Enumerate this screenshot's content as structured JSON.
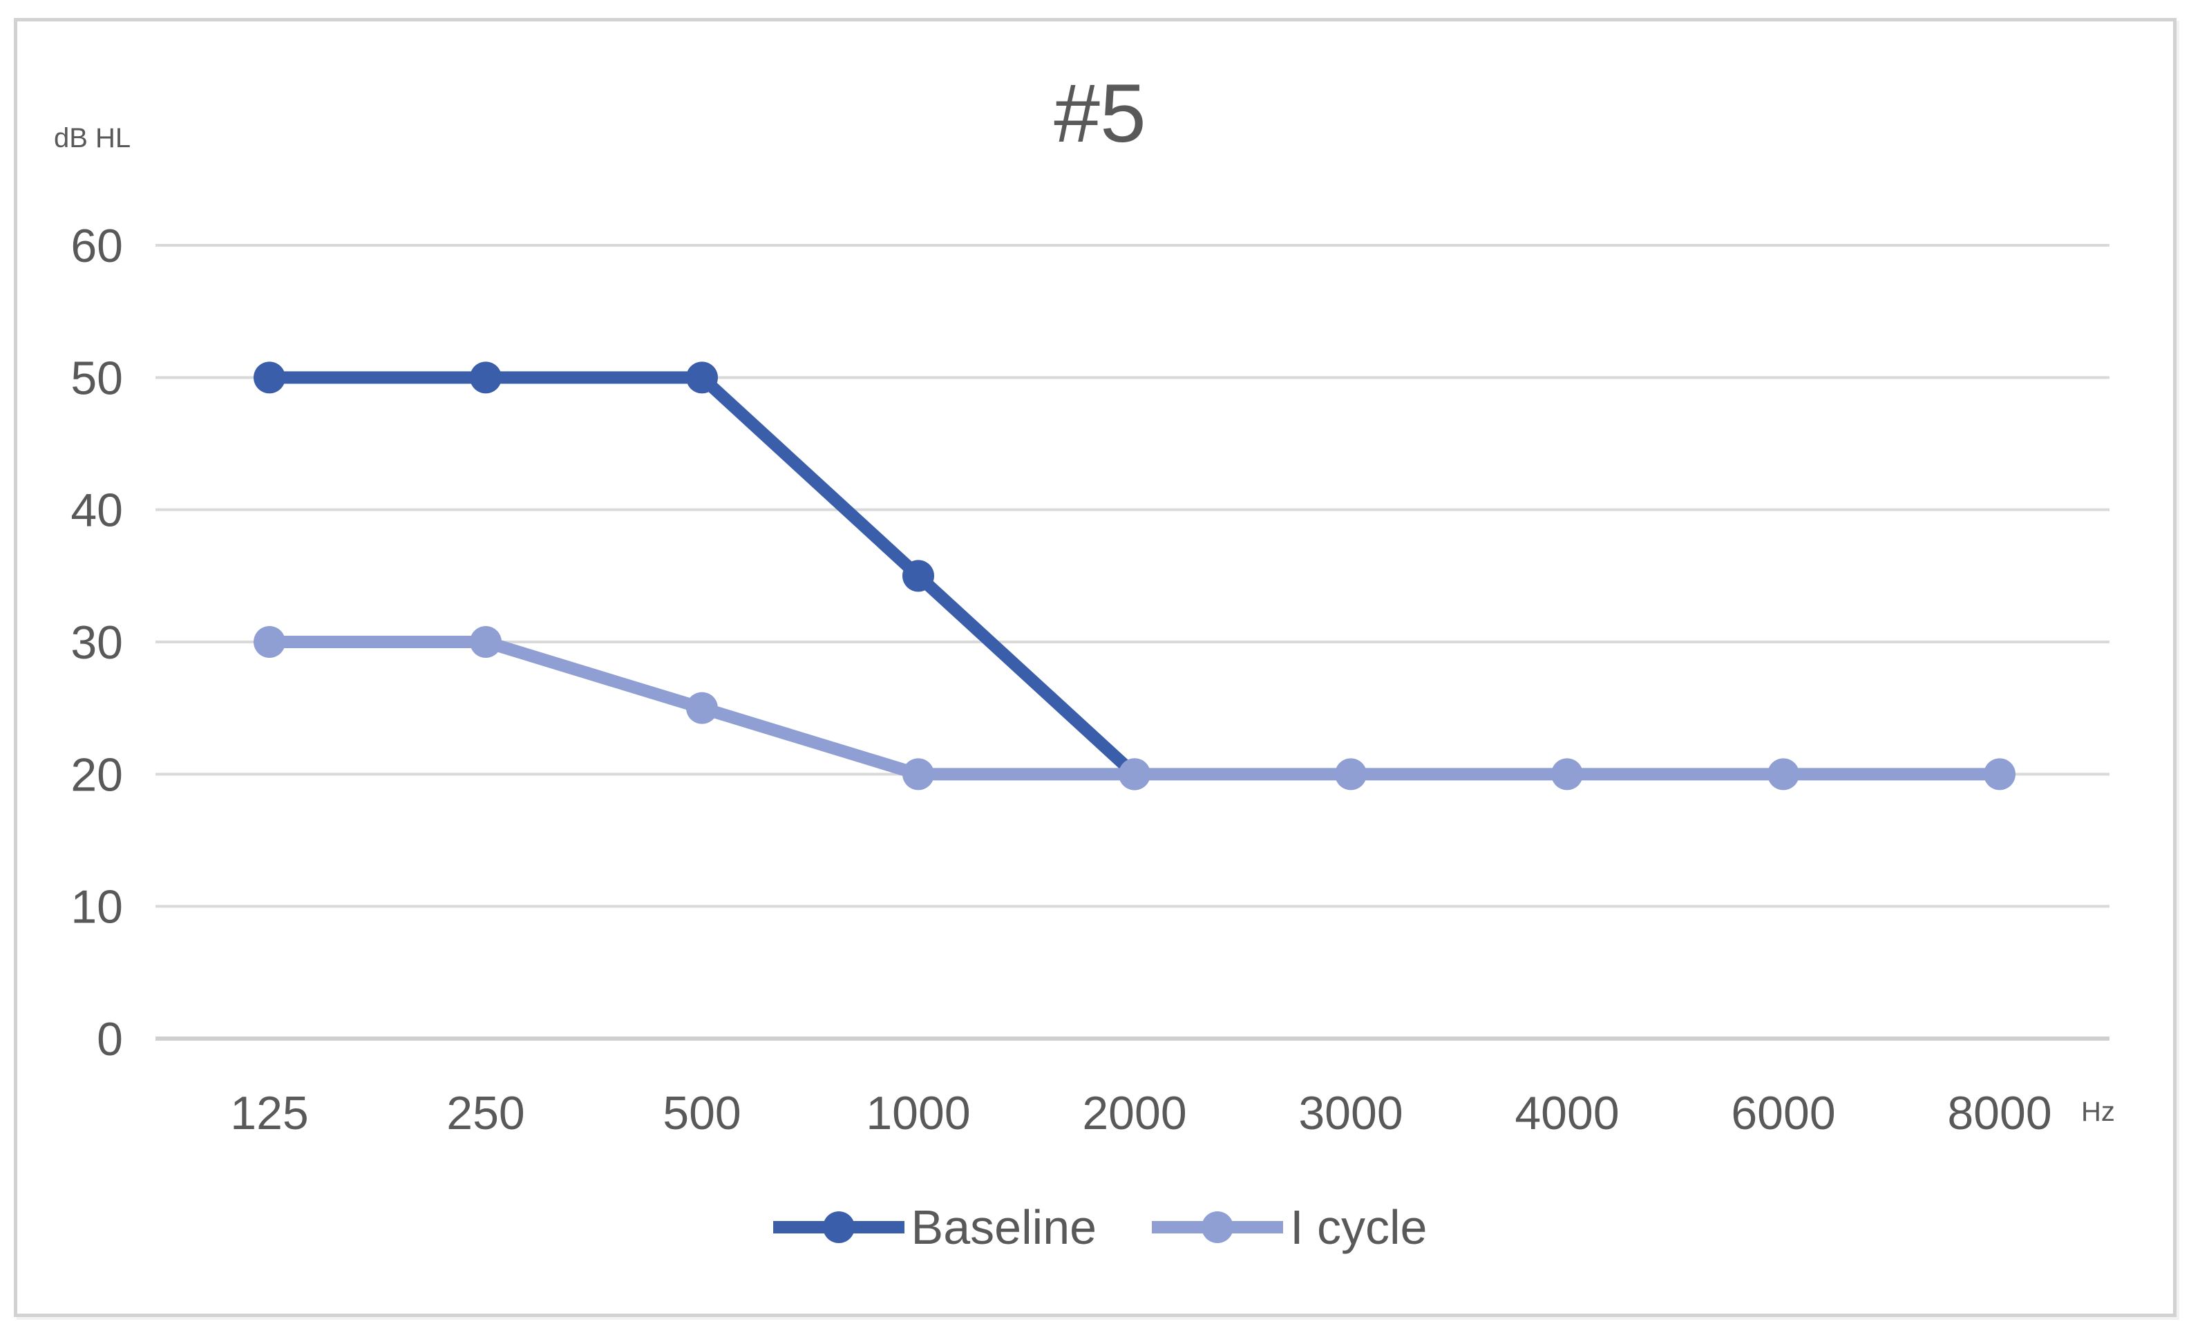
{
  "page": {
    "background": "#ffffff",
    "frame_border_color": "#d2d2d2"
  },
  "chart_data": {
    "type": "line",
    "title": "#5",
    "title_color": "#595959",
    "xlabel": "Hz",
    "ylabel": "dB HL",
    "x_categories": [
      "125",
      "250",
      "500",
      "1000",
      "2000",
      "3000",
      "4000",
      "6000",
      "8000"
    ],
    "y_ticks": [
      60,
      50,
      40,
      30,
      20,
      10,
      0
    ],
    "ylim": [
      0,
      60
    ],
    "grid": true,
    "gridline_color": "#d9d9d9",
    "axis_line_color": "#cfcfcf",
    "tick_label_color": "#595959",
    "legend_position": "bottom",
    "series": [
      {
        "name": "Baseline",
        "color": "#3B5EAB",
        "values": [
          50,
          50,
          50,
          35,
          20,
          null,
          null,
          null,
          null
        ]
      },
      {
        "name": "I cycle",
        "color": "#8F9FD4",
        "values": [
          30,
          30,
          25,
          20,
          20,
          20,
          20,
          20,
          20
        ]
      }
    ]
  }
}
